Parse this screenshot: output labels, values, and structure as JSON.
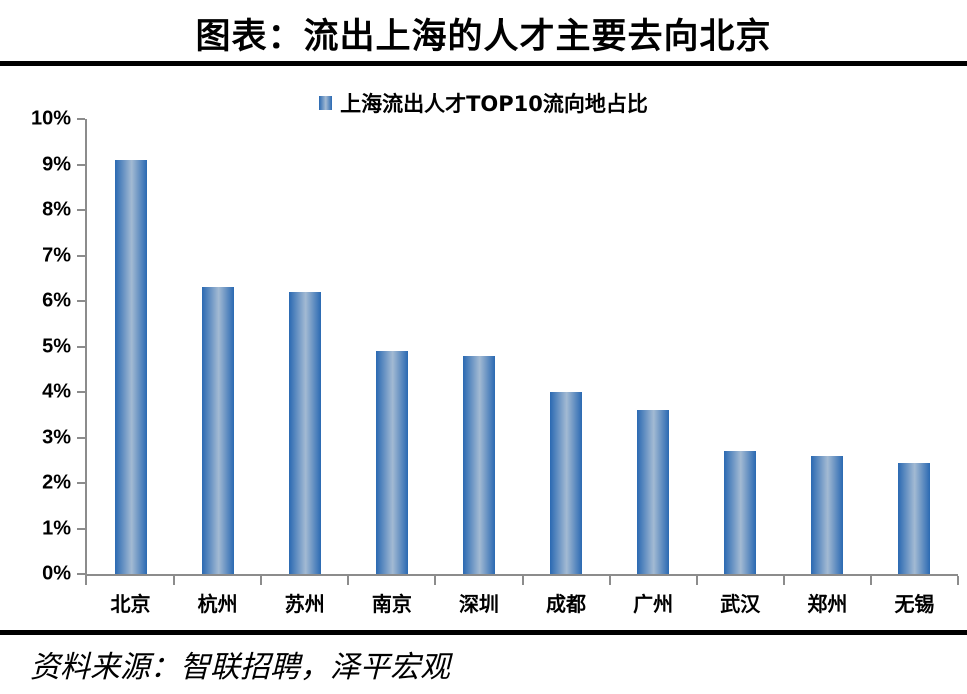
{
  "title": "图表：流出上海的人才主要去向北京",
  "legend": "上海流出人才TOP10流向地占比",
  "source": "资料来源：智联招聘，泽平宏观",
  "colors": {
    "bar_edge": "#2A69B2",
    "bar_center": "#A3BAD3",
    "axis": "#8C8C8C",
    "rule": "#000000",
    "text": "#000000"
  },
  "chart_data": {
    "type": "bar",
    "title": "上海流出人才TOP10流向地占比",
    "categories": [
      "北京",
      "杭州",
      "苏州",
      "南京",
      "深圳",
      "成都",
      "广州",
      "武汉",
      "郑州",
      "无锡"
    ],
    "values": [
      9.1,
      6.3,
      6.2,
      4.9,
      4.8,
      4.0,
      3.6,
      2.7,
      2.6,
      2.45
    ],
    "unit": "%",
    "xlabel": "",
    "ylabel": "",
    "ylim": [
      0,
      10
    ],
    "ytick_labels": [
      "0%",
      "1%",
      "2%",
      "3%",
      "4%",
      "5%",
      "6%",
      "7%",
      "8%",
      "9%",
      "10%"
    ],
    "grid": false,
    "legend_position": "top-center"
  }
}
